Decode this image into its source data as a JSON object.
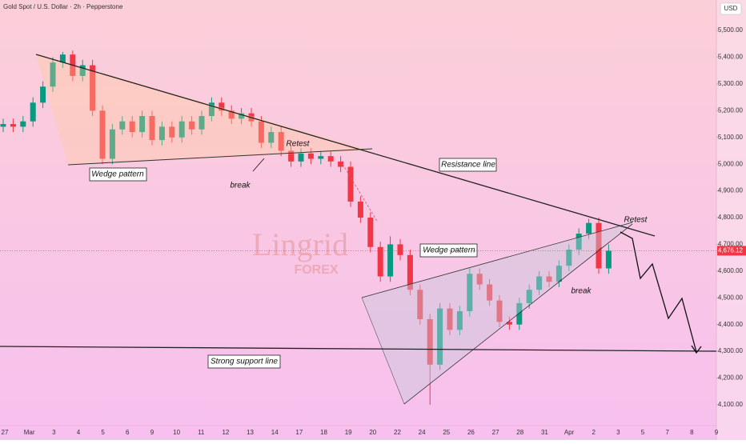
{
  "chart_data": {
    "type": "candlestick",
    "title": "Gold Spot / U.S. Dollar · 2h · Pepperstone",
    "currency": "USD",
    "x_ticks": [
      "27",
      "Mar",
      "3",
      "4",
      "5",
      "6",
      "9",
      "10",
      "11",
      "12",
      "13",
      "14",
      "17",
      "18",
      "19",
      "20",
      "22",
      "24",
      "25",
      "26",
      "27",
      "28",
      "31",
      "Apr",
      "2",
      "3",
      "5",
      "7",
      "8",
      "9"
    ],
    "open": [
      5140,
      5150,
      5140,
      5160,
      5230,
      5290,
      5380,
      5410,
      5330,
      5370,
      5200,
      5020,
      5130,
      5160,
      5120,
      5180,
      5090,
      5140,
      5100,
      5160,
      5130,
      5180,
      5230,
      5200,
      5170,
      5190,
      5160,
      5080,
      5120,
      5050,
      5010,
      5040,
      5020,
      5030,
      5010,
      4990,
      4860,
      4800,
      4690,
      4580,
      4700,
      4660,
      4530,
      4420,
      4250,
      4460,
      4380,
      4450,
      4590,
      4550,
      4490,
      4410,
      4400,
      4480,
      4530,
      4580,
      4560,
      4620,
      4680,
      4740,
      4780,
      4610
    ],
    "high": [
      5170,
      5170,
      5180,
      5250,
      5310,
      5400,
      5420,
      5425,
      5390,
      5390,
      5220,
      5150,
      5180,
      5180,
      5200,
      5200,
      5160,
      5160,
      5180,
      5180,
      5200,
      5250,
      5250,
      5220,
      5210,
      5210,
      5180,
      5140,
      5140,
      5070,
      5060,
      5060,
      5050,
      5050,
      5030,
      5010,
      4880,
      4820,
      4710,
      4730,
      4720,
      4680,
      4550,
      4440,
      4480,
      4480,
      4470,
      4610,
      4610,
      4570,
      4510,
      4430,
      4500,
      4550,
      4600,
      4600,
      4640,
      4700,
      4760,
      4795,
      4800,
      4700
    ],
    "low": [
      5120,
      5120,
      5120,
      5140,
      5210,
      5270,
      5360,
      5310,
      5310,
      5180,
      5000,
      5000,
      5110,
      5100,
      5100,
      5070,
      5070,
      5080,
      5080,
      5110,
      5110,
      5160,
      5180,
      5150,
      5150,
      5140,
      5060,
      5060,
      5030,
      4990,
      4990,
      5000,
      5000,
      4990,
      4970,
      4840,
      4780,
      4670,
      4560,
      4560,
      4640,
      4510,
      4400,
      4100,
      4230,
      4360,
      4360,
      4430,
      4530,
      4470,
      4390,
      4380,
      4380,
      4460,
      4510,
      4540,
      4540,
      4600,
      4660,
      4720,
      4590,
      4590
    ],
    "close": [
      5150,
      5140,
      5160,
      5230,
      5290,
      5380,
      5410,
      5330,
      5370,
      5200,
      5020,
      5130,
      5160,
      5120,
      5180,
      5090,
      5140,
      5100,
      5160,
      5130,
      5180,
      5230,
      5200,
      5170,
      5190,
      5160,
      5080,
      5120,
      5050,
      5010,
      5040,
      5020,
      5030,
      5010,
      4990,
      4860,
      4800,
      4690,
      4580,
      4700,
      4660,
      4530,
      4420,
      4250,
      4460,
      4380,
      4450,
      4590,
      4550,
      4490,
      4410,
      4400,
      4480,
      4530,
      4580,
      4560,
      4620,
      4680,
      4740,
      4780,
      4610,
      4676
    ],
    "up_color": "#089981",
    "down_color": "#f23645",
    "ylim": [
      4022,
      5614
    ],
    "yticks": [
      {
        "value": 4100,
        "label": "4,100.00"
      },
      {
        "value": 4200,
        "label": "4,200.00"
      },
      {
        "value": 4300,
        "label": "4,300.00"
      },
      {
        "value": 4400,
        "label": "4,400.00"
      },
      {
        "value": 4500,
        "label": "4,500.00"
      },
      {
        "value": 4600,
        "label": "4,600.00"
      },
      {
        "value": 4700,
        "label": "4,700.00"
      },
      {
        "value": 4800,
        "label": "4,800.00"
      },
      {
        "value": 4900,
        "label": "4,900.00"
      },
      {
        "value": 5000,
        "label": "5,000.00"
      },
      {
        "value": 5100,
        "label": "5,100.00"
      },
      {
        "value": 5200,
        "label": "5,200.00"
      },
      {
        "value": 5300,
        "label": "5,300.00"
      },
      {
        "value": 5400,
        "label": "5,400.00"
      },
      {
        "value": 5500,
        "label": "5,500.00"
      }
    ],
    "last_price": {
      "value": 4676.12,
      "label": "4,676.12"
    },
    "annotations": [
      "Wedge pattern",
      "break",
      "Retest",
      "Resistance line",
      "Wedge pattern",
      "break",
      "Retest",
      "Strong support line"
    ],
    "watermark": [
      "Lingrid",
      "FOREX"
    ]
  }
}
